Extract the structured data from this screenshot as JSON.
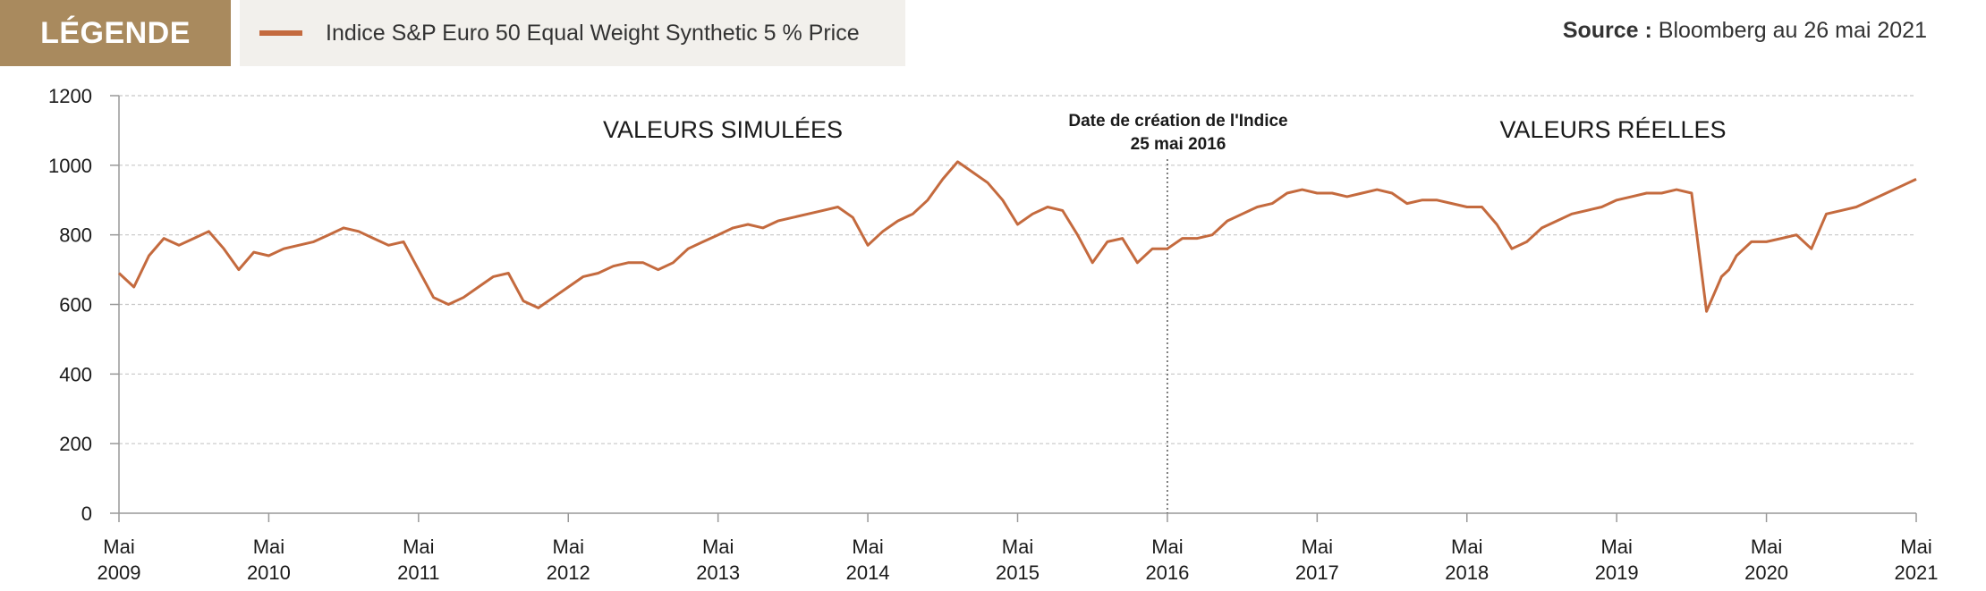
{
  "legend": {
    "tag": "LÉGENDE",
    "series_label": "Indice S&P Euro 50 Equal Weight Synthetic 5 % Price"
  },
  "source": {
    "prefix": "Source :",
    "text": "Bloomberg au 26 mai 2021"
  },
  "annotations": {
    "simulated": "VALEURS SIMULÉES",
    "real": "VALEURS RÉELLES",
    "creation_line1": "Date de création de l'Indice",
    "creation_line2": "25 mai 2016"
  },
  "colors": {
    "series": "#c46a3e",
    "legend_tag": "#a98a5e",
    "legend_box": "#f2f0ec",
    "grid": "#c8c8c8"
  },
  "chart_data": {
    "type": "line",
    "title": "",
    "xlabel": "",
    "ylabel": "",
    "ylim": [
      0,
      1200
    ],
    "yticks": [
      0,
      200,
      400,
      600,
      800,
      1000,
      1200
    ],
    "xlim": [
      2009.4,
      2021.4
    ],
    "xticks": [
      {
        "x": 2009.4,
        "l1": "Mai",
        "l2": "2009"
      },
      {
        "x": 2010.4,
        "l1": "Mai",
        "l2": "2010"
      },
      {
        "x": 2011.4,
        "l1": "Mai",
        "l2": "2011"
      },
      {
        "x": 2012.4,
        "l1": "Mai",
        "l2": "2012"
      },
      {
        "x": 2013.4,
        "l1": "Mai",
        "l2": "2013"
      },
      {
        "x": 2014.4,
        "l1": "Mai",
        "l2": "2014"
      },
      {
        "x": 2015.4,
        "l1": "Mai",
        "l2": "2015"
      },
      {
        "x": 2016.4,
        "l1": "Mai",
        "l2": "2016"
      },
      {
        "x": 2017.4,
        "l1": "Mai",
        "l2": "2017"
      },
      {
        "x": 2018.4,
        "l1": "Mai",
        "l2": "2018"
      },
      {
        "x": 2019.4,
        "l1": "Mai",
        "l2": "2019"
      },
      {
        "x": 2020.4,
        "l1": "Mai",
        "l2": "2020"
      },
      {
        "x": 2021.4,
        "l1": "Mai",
        "l2": "2021"
      }
    ],
    "grid": true,
    "creation_date_x": 2016.4,
    "series": [
      {
        "name": "Indice S&P Euro 50 Equal Weight Synthetic 5 % Price",
        "x": [
          2009.4,
          2009.5,
          2009.6,
          2009.7,
          2009.8,
          2009.9,
          2010.0,
          2010.1,
          2010.2,
          2010.3,
          2010.4,
          2010.5,
          2010.6,
          2010.7,
          2010.8,
          2010.9,
          2011.0,
          2011.1,
          2011.2,
          2011.3,
          2011.4,
          2011.5,
          2011.6,
          2011.7,
          2011.8,
          2011.9,
          2012.0,
          2012.1,
          2012.2,
          2012.3,
          2012.4,
          2012.5,
          2012.6,
          2012.7,
          2012.8,
          2012.9,
          2013.0,
          2013.1,
          2013.2,
          2013.3,
          2013.4,
          2013.5,
          2013.6,
          2013.7,
          2013.8,
          2013.9,
          2014.0,
          2014.1,
          2014.2,
          2014.3,
          2014.4,
          2014.5,
          2014.6,
          2014.7,
          2014.8,
          2014.9,
          2015.0,
          2015.1,
          2015.2,
          2015.3,
          2015.4,
          2015.5,
          2015.6,
          2015.7,
          2015.8,
          2015.9,
          2016.0,
          2016.1,
          2016.2,
          2016.3,
          2016.4,
          2016.5,
          2016.6,
          2016.7,
          2016.8,
          2016.9,
          2017.0,
          2017.1,
          2017.2,
          2017.3,
          2017.4,
          2017.5,
          2017.6,
          2017.7,
          2017.8,
          2017.9,
          2018.0,
          2018.1,
          2018.2,
          2018.3,
          2018.4,
          2018.5,
          2018.6,
          2018.7,
          2018.8,
          2018.9,
          2019.0,
          2019.1,
          2019.2,
          2019.3,
          2019.4,
          2019.5,
          2019.6,
          2019.7,
          2019.8,
          2019.9,
          2020.0,
          2020.1,
          2020.15,
          2020.2,
          2020.3,
          2020.4,
          2020.5,
          2020.6,
          2020.7,
          2020.8,
          2020.9,
          2021.0,
          2021.1,
          2021.2,
          2021.3,
          2021.4
        ],
        "values": [
          690,
          650,
          740,
          790,
          770,
          790,
          810,
          760,
          700,
          750,
          740,
          760,
          770,
          780,
          800,
          820,
          810,
          790,
          770,
          780,
          700,
          620,
          600,
          620,
          650,
          680,
          690,
          610,
          590,
          620,
          650,
          680,
          690,
          710,
          720,
          720,
          700,
          720,
          760,
          780,
          800,
          820,
          830,
          820,
          840,
          850,
          860,
          870,
          880,
          850,
          770,
          810,
          840,
          860,
          900,
          960,
          1010,
          980,
          950,
          900,
          830,
          860,
          880,
          870,
          800,
          720,
          780,
          790,
          720,
          760,
          760,
          790,
          790,
          800,
          840,
          860,
          880,
          890,
          920,
          930,
          920,
          920,
          910,
          920,
          930,
          920,
          890,
          900,
          900,
          890,
          880,
          880,
          830,
          760,
          780,
          820,
          840,
          860,
          870,
          880,
          900,
          910,
          920,
          920,
          930,
          920,
          580,
          680,
          700,
          740,
          780,
          780,
          790,
          800,
          760,
          860,
          870,
          880,
          900,
          920,
          940,
          960
        ]
      }
    ]
  }
}
